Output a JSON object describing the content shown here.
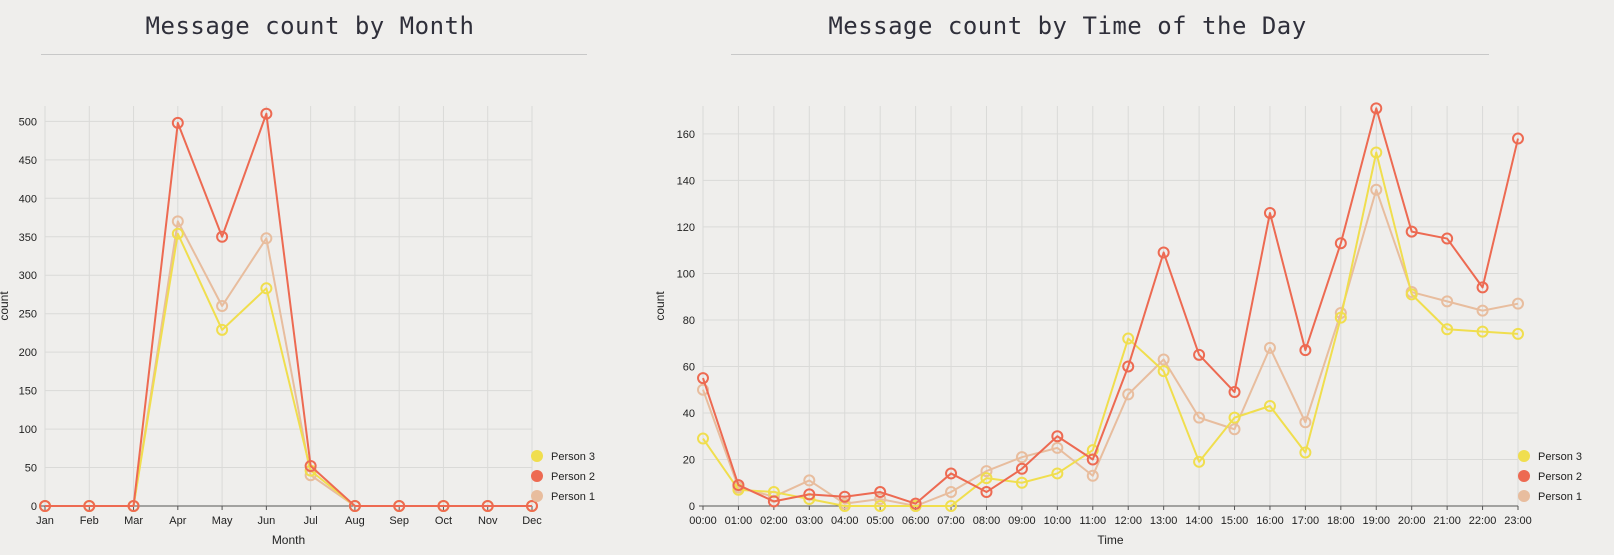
{
  "colors": {
    "Person 3": "#f0de4e",
    "Person 2": "#ed6a52",
    "Person 1": "#e8bd9e",
    "background": "#efeeec",
    "grid": "#dadad8"
  },
  "chart_data": [
    {
      "type": "line",
      "title": "Message count by Month",
      "xlabel": "Month",
      "ylabel": "count",
      "categories": [
        "Jan",
        "Feb",
        "Mar",
        "Apr",
        "May",
        "Jun",
        "Jul",
        "Aug",
        "Sep",
        "Oct",
        "Nov",
        "Dec"
      ],
      "ylim": [
        0,
        520
      ],
      "yticks": [
        0,
        50,
        100,
        150,
        200,
        250,
        300,
        350,
        400,
        450,
        500
      ],
      "grid": true,
      "legend_position": "bottom-right",
      "series": [
        {
          "name": "Person 1",
          "values": [
            0,
            0,
            0,
            370,
            260,
            348,
            40,
            0,
            0,
            0,
            0,
            0
          ]
        },
        {
          "name": "Person 2",
          "values": [
            0,
            0,
            0,
            498,
            350,
            510,
            52,
            0,
            0,
            0,
            0,
            0
          ]
        },
        {
          "name": "Person 3",
          "values": [
            0,
            0,
            0,
            354,
            229,
            283,
            46,
            0,
            0,
            0,
            0,
            0
          ]
        }
      ],
      "legend": [
        "Person 3",
        "Person 2",
        "Person 1"
      ]
    },
    {
      "type": "line",
      "title": "Message count by Time of the Day",
      "xlabel": "Time",
      "ylabel": "count",
      "categories": [
        "00:00",
        "01:00",
        "02:00",
        "03:00",
        "04:00",
        "05:00",
        "06:00",
        "07:00",
        "08:00",
        "09:00",
        "10:00",
        "11:00",
        "12:00",
        "13:00",
        "14:00",
        "15:00",
        "16:00",
        "17:00",
        "18:00",
        "19:00",
        "20:00",
        "21:00",
        "22:00",
        "23:00"
      ],
      "ylim": [
        0,
        172
      ],
      "yticks": [
        0,
        20,
        40,
        60,
        80,
        100,
        120,
        140,
        160
      ],
      "grid": true,
      "legend_position": "bottom-right",
      "series": [
        {
          "name": "Person 1",
          "values": [
            50,
            8,
            4,
            11,
            1,
            3,
            0,
            6,
            15,
            21,
            25,
            13,
            48,
            63,
            38,
            33,
            68,
            36,
            83,
            136,
            92,
            88,
            84,
            87
          ]
        },
        {
          "name": "Person 2",
          "values": [
            55,
            9,
            2,
            5,
            4,
            6,
            1,
            14,
            6,
            16,
            30,
            20,
            60,
            109,
            65,
            49,
            126,
            67,
            113,
            171,
            118,
            115,
            94,
            158
          ]
        },
        {
          "name": "Person 3",
          "values": [
            29,
            7,
            6,
            3,
            0,
            0,
            0,
            0,
            12,
            10,
            14,
            24,
            72,
            58,
            19,
            38,
            43,
            23,
            81,
            152,
            91,
            76,
            75,
            74
          ]
        }
      ],
      "legend": [
        "Person 3",
        "Person 2",
        "Person 1"
      ]
    }
  ]
}
